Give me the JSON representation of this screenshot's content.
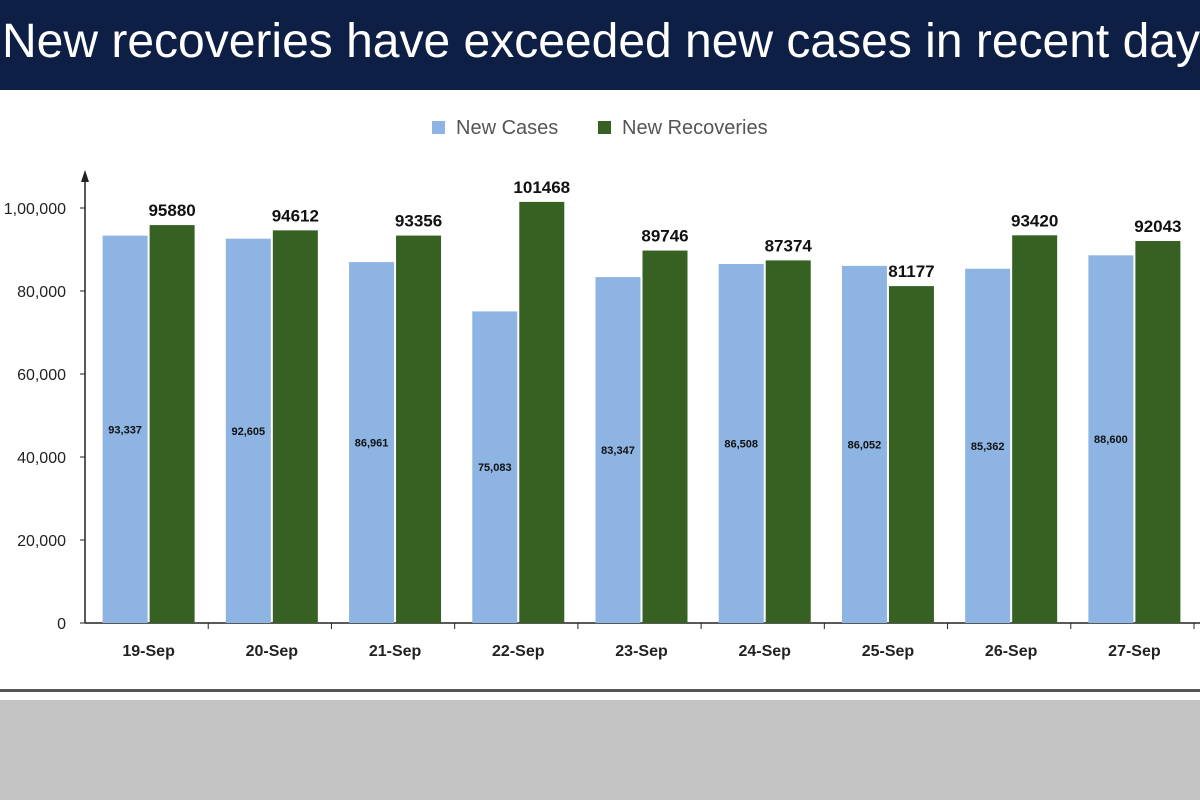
{
  "title": "New recoveries have exceeded new cases in recent days",
  "colors": {
    "title_bg": "#0e1f45",
    "new_cases": "#8db4e2",
    "new_recoveries": "#376023",
    "background_band": "#c4c4c4"
  },
  "chart_data": {
    "type": "bar",
    "title": "",
    "xlabel": "",
    "ylabel": "",
    "categories": [
      "19-Sep",
      "20-Sep",
      "21-Sep",
      "22-Sep",
      "23-Sep",
      "24-Sep",
      "25-Sep",
      "26-Sep",
      "27-Sep"
    ],
    "series": [
      {
        "name": "New Cases",
        "values": [
          93337,
          92605,
          86961,
          75083,
          83347,
          86508,
          86052,
          85362,
          88600
        ],
        "labels": [
          "93,337",
          "92,605",
          "86,961",
          "75,083",
          "83,347",
          "86,508",
          "86,052",
          "85,362",
          "88,600"
        ]
      },
      {
        "name": "New Recoveries",
        "values": [
          95880,
          94612,
          93356,
          101468,
          89746,
          87374,
          81177,
          93420,
          92043
        ],
        "labels": [
          "95880",
          "94612",
          "93356",
          "101468",
          "89746",
          "87374",
          "81177",
          "93420",
          "92043"
        ]
      }
    ],
    "ylim": [
      0,
      100000
    ],
    "yticks": [
      0,
      20000,
      40000,
      60000,
      80000,
      100000
    ],
    "ytick_labels": [
      "0",
      "20,000",
      "40,000",
      "60,000",
      "80,000",
      "1,00,000"
    ],
    "legend_position": "top-center",
    "grid": false
  }
}
